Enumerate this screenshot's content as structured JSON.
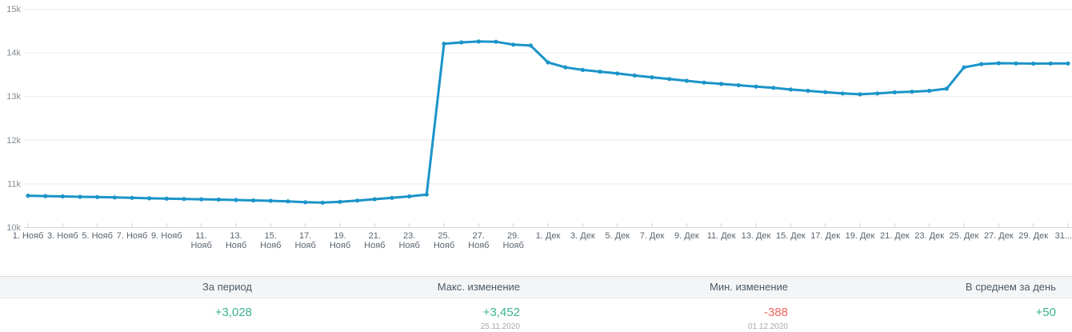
{
  "chart_data": {
    "type": "line",
    "title": "",
    "xlabel": "",
    "ylabel": "",
    "ylim": [
      10000,
      15000
    ],
    "grid": "horizontal",
    "legend": "none",
    "marker": "circle",
    "line_color": "#1b94c8",
    "y_ticks": [
      "10k",
      "11k",
      "12k",
      "13k",
      "14k",
      "15k"
    ],
    "y_tick_values": [
      10000,
      11000,
      12000,
      13000,
      14000,
      15000
    ],
    "start_date": "2020-11-01",
    "end_date": "2020-12-31",
    "dates": [
      "2020-11-01",
      "2020-11-02",
      "2020-11-03",
      "2020-11-04",
      "2020-11-05",
      "2020-11-06",
      "2020-11-07",
      "2020-11-08",
      "2020-11-09",
      "2020-11-10",
      "2020-11-11",
      "2020-11-12",
      "2020-11-13",
      "2020-11-14",
      "2020-11-15",
      "2020-11-16",
      "2020-11-17",
      "2020-11-18",
      "2020-11-19",
      "2020-11-20",
      "2020-11-21",
      "2020-11-22",
      "2020-11-23",
      "2020-11-24",
      "2020-11-25",
      "2020-11-26",
      "2020-11-27",
      "2020-11-28",
      "2020-11-29",
      "2020-11-30",
      "2020-12-01",
      "2020-12-02",
      "2020-12-03",
      "2020-12-04",
      "2020-12-05",
      "2020-12-06",
      "2020-12-07",
      "2020-12-08",
      "2020-12-09",
      "2020-12-10",
      "2020-12-11",
      "2020-12-12",
      "2020-12-13",
      "2020-12-14",
      "2020-12-15",
      "2020-12-16",
      "2020-12-17",
      "2020-12-18",
      "2020-12-19",
      "2020-12-20",
      "2020-12-21",
      "2020-12-22",
      "2020-12-23",
      "2020-12-24",
      "2020-12-25",
      "2020-12-26",
      "2020-12-27",
      "2020-12-28",
      "2020-12-29",
      "2020-12-30",
      "2020-12-31"
    ],
    "values": [
      10722,
      10713,
      10705,
      10696,
      10690,
      10681,
      10672,
      10662,
      10654,
      10646,
      10639,
      10631,
      10622,
      10614,
      10605,
      10591,
      10572,
      10562,
      10580,
      10610,
      10641,
      10672,
      10705,
      10748,
      14200,
      14230,
      14250,
      14245,
      14180,
      14160,
      13772,
      13660,
      13600,
      13560,
      13520,
      13472,
      13432,
      13392,
      13352,
      13312,
      13280,
      13250,
      13220,
      13190,
      13152,
      13122,
      13092,
      13062,
      13042,
      13062,
      13088,
      13102,
      13122,
      13170,
      13660,
      13735,
      13755,
      13750,
      13745,
      13748,
      13750
    ],
    "x_ticks": [
      {
        "day": 0,
        "label": "1. Нояб"
      },
      {
        "day": 2,
        "label": "3. Нояб"
      },
      {
        "day": 4,
        "label": "5. Нояб"
      },
      {
        "day": 6,
        "label": "7. Нояб"
      },
      {
        "day": 8,
        "label": "9. Нояб"
      },
      {
        "day": 10,
        "label": "11.",
        "label2": "Нояб"
      },
      {
        "day": 12,
        "label": "13.",
        "label2": "Нояб"
      },
      {
        "day": 14,
        "label": "15.",
        "label2": "Нояб"
      },
      {
        "day": 16,
        "label": "17.",
        "label2": "Нояб"
      },
      {
        "day": 18,
        "label": "19.",
        "label2": "Нояб"
      },
      {
        "day": 20,
        "label": "21.",
        "label2": "Нояб"
      },
      {
        "day": 22,
        "label": "23.",
        "label2": "Нояб"
      },
      {
        "day": 24,
        "label": "25.",
        "label2": "Нояб"
      },
      {
        "day": 26,
        "label": "27.",
        "label2": "Нояб"
      },
      {
        "day": 28,
        "label": "29.",
        "label2": "Нояб"
      },
      {
        "day": 30,
        "label": "1. Дек"
      },
      {
        "day": 32,
        "label": "3. Дек"
      },
      {
        "day": 34,
        "label": "5. Дек"
      },
      {
        "day": 36,
        "label": "7. Дек"
      },
      {
        "day": 38,
        "label": "9. Дек"
      },
      {
        "day": 40,
        "label": "11. Дек"
      },
      {
        "day": 42,
        "label": "13. Дек"
      },
      {
        "day": 44,
        "label": "15. Дек"
      },
      {
        "day": 46,
        "label": "17. Дек"
      },
      {
        "day": 48,
        "label": "19. Дек"
      },
      {
        "day": 50,
        "label": "21. Дек"
      },
      {
        "day": 52,
        "label": "23. Дек"
      },
      {
        "day": 54,
        "label": "25. Дек"
      },
      {
        "day": 56,
        "label": "27. Дек"
      },
      {
        "day": 58,
        "label": "29. Дек"
      },
      {
        "day": 60,
        "label": "31..."
      }
    ]
  },
  "stats": {
    "columns": [
      {
        "label": "За период",
        "value": "+3,028",
        "color": "green"
      },
      {
        "label": "Макс. изменение",
        "value": "+3,452",
        "date": "25.11.2020",
        "color": "green"
      },
      {
        "label": "Мин. изменение",
        "value": "-388",
        "date": "01.12.2020",
        "color": "red"
      },
      {
        "label": "В среднем за день",
        "value": "+50",
        "color": "green"
      }
    ]
  },
  "colors": {
    "line": "#1b94c8",
    "positive": "#3bb394",
    "negative": "#f0645c",
    "grid": "#ececec",
    "axis": "#ccd6de"
  }
}
